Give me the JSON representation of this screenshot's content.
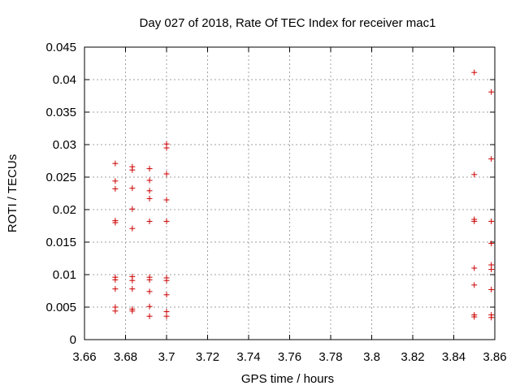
{
  "chart_data": {
    "type": "scatter",
    "title": "Day 027 of 2018, Rate Of TEC Index for receiver mac1",
    "xlabel": "GPS time / hours",
    "ylabel": "ROTI / TECUs",
    "xlim": [
      3.66,
      3.86
    ],
    "ylim": [
      0,
      0.045
    ],
    "xticks": [
      3.66,
      3.68,
      3.7,
      3.72,
      3.74,
      3.76,
      3.78,
      3.8,
      3.82,
      3.84,
      3.86
    ],
    "xtick_labels": [
      "3.66",
      "3.68",
      "3.7",
      "3.72",
      "3.74",
      "3.76",
      "3.78",
      "3.8",
      "3.82",
      "3.84",
      "3.86"
    ],
    "yticks": [
      0,
      0.005,
      0.01,
      0.015,
      0.02,
      0.025,
      0.03,
      0.035,
      0.04,
      0.045
    ],
    "ytick_labels": [
      "0",
      "0.005",
      "0.01",
      "0.015",
      "0.02",
      "0.025",
      "0.03",
      "0.035",
      "0.04",
      "0.045"
    ],
    "grid": true,
    "marker": "+",
    "color": "#cc0000",
    "series": [
      {
        "name": "ROTI",
        "points": [
          [
            3.675,
            0.0271
          ],
          [
            3.675,
            0.0244
          ],
          [
            3.675,
            0.0232
          ],
          [
            3.675,
            0.0183
          ],
          [
            3.675,
            0.018
          ],
          [
            3.675,
            0.0096
          ],
          [
            3.675,
            0.0092
          ],
          [
            3.675,
            0.0078
          ],
          [
            3.675,
            0.005
          ],
          [
            3.675,
            0.0044
          ],
          [
            3.6833,
            0.0266
          ],
          [
            3.6833,
            0.0261
          ],
          [
            3.6833,
            0.0233
          ],
          [
            3.6833,
            0.0201
          ],
          [
            3.6833,
            0.0171
          ],
          [
            3.6833,
            0.0097
          ],
          [
            3.6833,
            0.0091
          ],
          [
            3.6833,
            0.0078
          ],
          [
            3.6833,
            0.0047
          ],
          [
            3.6833,
            0.0044
          ],
          [
            3.6917,
            0.0263
          ],
          [
            3.6917,
            0.0245
          ],
          [
            3.6917,
            0.0229
          ],
          [
            3.6917,
            0.0217
          ],
          [
            3.6917,
            0.0182
          ],
          [
            3.6917,
            0.0096
          ],
          [
            3.6917,
            0.0092
          ],
          [
            3.6917,
            0.0074
          ],
          [
            3.6917,
            0.0051
          ],
          [
            3.6917,
            0.0036
          ],
          [
            3.7,
            0.0301
          ],
          [
            3.7,
            0.0295
          ],
          [
            3.7,
            0.0255
          ],
          [
            3.7,
            0.0215
          ],
          [
            3.7,
            0.0182
          ],
          [
            3.7,
            0.0095
          ],
          [
            3.7,
            0.0091
          ],
          [
            3.7,
            0.0069
          ],
          [
            3.7,
            0.0043
          ],
          [
            3.7,
            0.0036
          ],
          [
            3.85,
            0.0411
          ],
          [
            3.85,
            0.0254
          ],
          [
            3.85,
            0.0185
          ],
          [
            3.85,
            0.0182
          ],
          [
            3.85,
            0.011
          ],
          [
            3.85,
            0.0084
          ],
          [
            3.85,
            0.0038
          ],
          [
            3.85,
            0.0035
          ],
          [
            3.8583,
            0.0381
          ],
          [
            3.8583,
            0.0278
          ],
          [
            3.8583,
            0.0182
          ],
          [
            3.8583,
            0.0148
          ],
          [
            3.8583,
            0.0115
          ],
          [
            3.8583,
            0.0108
          ],
          [
            3.8583,
            0.0077
          ],
          [
            3.8583,
            0.0038
          ],
          [
            3.8583,
            0.0034
          ]
        ]
      }
    ]
  }
}
